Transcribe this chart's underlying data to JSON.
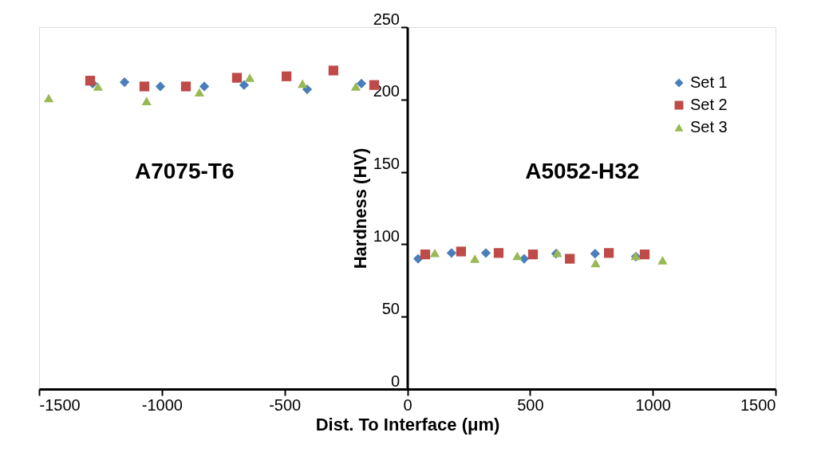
{
  "chart_data": {
    "type": "scatter",
    "xlabel": "Dist. To Interface (μm)",
    "ylabel": "Hardness (HV)",
    "xlim": [
      -1500,
      1500
    ],
    "xticks": [
      {
        "value": -1500,
        "label": "-1500"
      },
      {
        "value": -1000,
        "label": "-1000"
      },
      {
        "value": -500,
        "label": "-500"
      },
      0,
      {
        "value": 500,
        "label": "500"
      },
      {
        "value": 1000,
        "label": "1000"
      },
      {
        "value": 1500,
        "label": "1500"
      }
    ],
    "ylim": [
      0,
      250
    ],
    "yticks": [
      0,
      50,
      100,
      150,
      200,
      250
    ],
    "grid": false,
    "legend": "top right",
    "annotations": [
      "A7075-T6",
      "A5052-H32"
    ],
    "series": [
      {
        "name": "Set 1",
        "color": "#4a7ebb",
        "marker": "diamond",
        "x": [
          -1282,
          -1152,
          -1006,
          -827,
          -665,
          -408,
          -187,
          44,
          180,
          320,
          476,
          606,
          765,
          931
        ],
        "values": [
          211,
          212,
          209,
          209,
          210,
          207,
          211,
          90,
          94,
          94,
          90,
          93.5,
          93.5,
          91.5
        ]
      },
      {
        "name": "Set 2",
        "color": "#be4b48",
        "marker": "square",
        "x": [
          -1292,
          -1071,
          -902,
          -694,
          -492,
          -301,
          -135,
          73,
          219,
          372,
          512,
          662,
          821,
          967
        ],
        "values": [
          213,
          209,
          209,
          215,
          216,
          220,
          210,
          93,
          95,
          94,
          93,
          90,
          94,
          93
        ]
      },
      {
        "name": "Set 3",
        "color": "#98b954",
        "marker": "triangle",
        "x": [
          -1461,
          -1260,
          -1062,
          -847,
          -642,
          -427,
          -210,
          112,
          275,
          448,
          611,
          767,
          930,
          1040
        ],
        "values": [
          201,
          209,
          199,
          205,
          215,
          211,
          209,
          94,
          90,
          92,
          94,
          87,
          92,
          89
        ]
      }
    ]
  }
}
